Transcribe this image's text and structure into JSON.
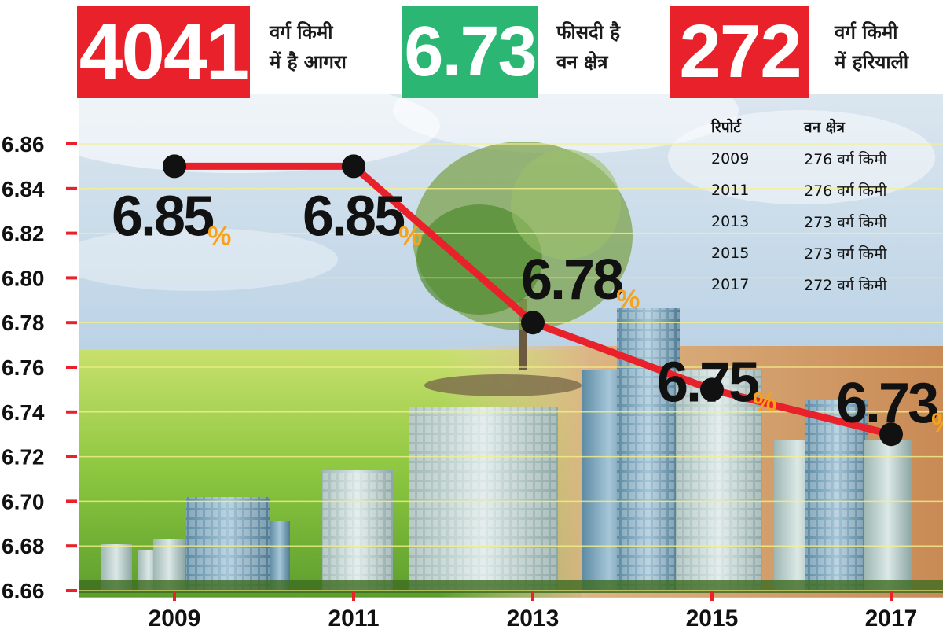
{
  "colors": {
    "red_box": "#e8212a",
    "green_box": "#2bb673",
    "line": "#e8212a",
    "marker": "#111111",
    "percent_sign": "#f7a21b",
    "tick_mark": "#e8212a"
  },
  "header": {
    "stat1": {
      "value": "4041",
      "line1": "वर्ग किमी",
      "line2": "में है आगरा"
    },
    "stat2": {
      "value": "6.73",
      "line1": "फीसदी है",
      "line2": "वन क्षेत्र"
    },
    "stat3": {
      "value": "272",
      "line1": "वर्ग किमी",
      "line2": "में हरियाली"
    }
  },
  "report_table": {
    "headers": [
      "रिपोर्ट",
      "वन क्षेत्र"
    ],
    "rows": [
      [
        "2009",
        "276 वर्ग किमी"
      ],
      [
        "2011",
        "276 वर्ग किमी"
      ],
      [
        "2013",
        "273 वर्ग किमी"
      ],
      [
        "2015",
        "273 वर्ग किमी"
      ],
      [
        "2017",
        "272 वर्ग किमी"
      ]
    ]
  },
  "chart_data": {
    "type": "line",
    "x": [
      "2009",
      "2011",
      "2013",
      "2015",
      "2017"
    ],
    "series": [
      {
        "values": [
          6.85,
          6.85,
          6.78,
          6.75,
          6.73
        ]
      }
    ],
    "data_labels": [
      "6.85",
      "6.85",
      "6.78",
      "6.75",
      "6.73"
    ],
    "data_label_suffix": "%",
    "yticks": [
      "6.86",
      "6.84",
      "6.82",
      "6.80",
      "6.78",
      "6.76",
      "6.74",
      "6.72",
      "6.70",
      "6.68",
      "6.66"
    ],
    "ylim": [
      6.66,
      6.86
    ],
    "title": "",
    "xlabel": "",
    "ylabel": "",
    "grid": true
  }
}
